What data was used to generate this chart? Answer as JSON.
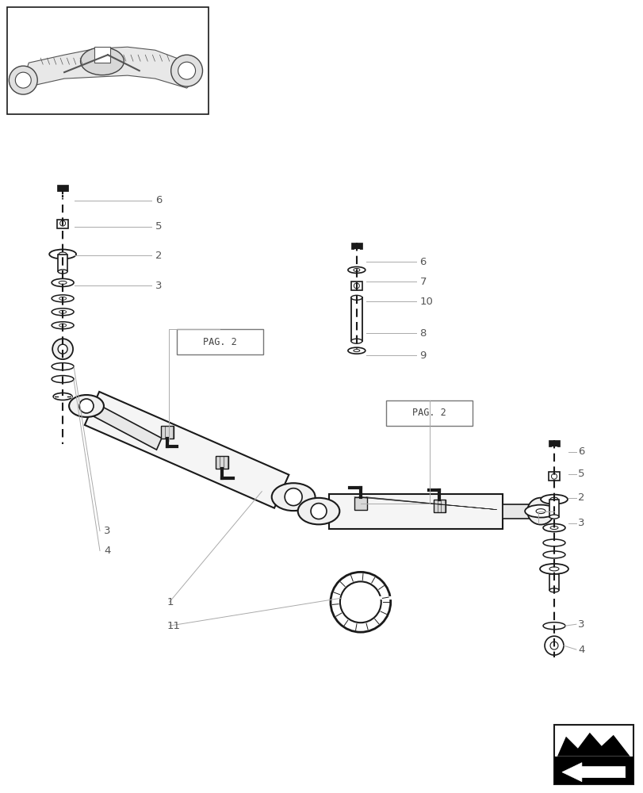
{
  "bg_color": "#ffffff",
  "lc": "#1a1a1a",
  "plc": "#aaaaaa",
  "dlc": "#555555",
  "fig_width": 8.12,
  "fig_height": 10.0
}
